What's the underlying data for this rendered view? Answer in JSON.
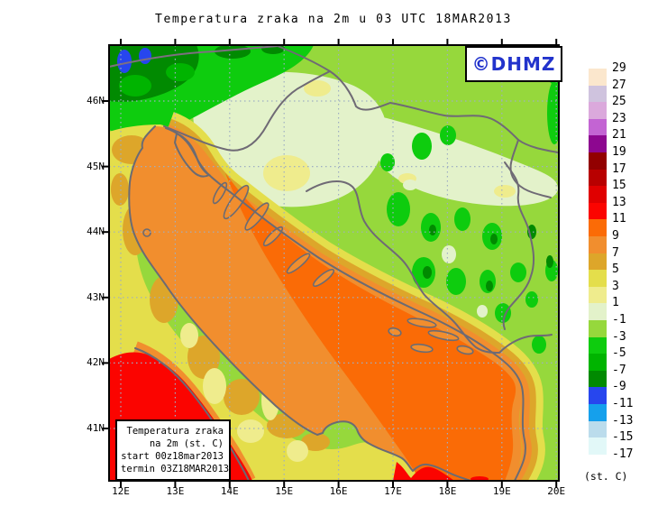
{
  "title": "Temperatura zraka na 2m u 03 UTC 18MAR2013",
  "watermark": {
    "text": "©DHMZ",
    "color": "#2233cc"
  },
  "axes": {
    "x_labels": [
      "12E",
      "13E",
      "14E",
      "15E",
      "16E",
      "17E",
      "18E",
      "19E",
      "20E"
    ],
    "y_labels": [
      "46N",
      "45N",
      "44N",
      "43N",
      "42N",
      "41N"
    ]
  },
  "legend": {
    "unit": "(st. C)",
    "levels": [
      "29",
      "27",
      "25",
      "23",
      "21",
      "19",
      "17",
      "15",
      "13",
      "11",
      "9",
      "7",
      "5",
      "3",
      "1",
      "-1",
      "-3",
      "-5",
      "-7",
      "-9",
      "-11",
      "-13",
      "-15",
      "-17"
    ],
    "colors": [
      "#fbe7cd",
      "#cfc3de",
      "#dba9dc",
      "#c364d3",
      "#8d0790",
      "#920000",
      "#b80000",
      "#e00000",
      "#fb0400",
      "#fb6b06",
      "#f18e2e",
      "#dda62a",
      "#e4de4b",
      "#efec8d",
      "#e3f2ca",
      "#96d83c",
      "#0ecc0e",
      "#00b400",
      "#018a01",
      "#2746ee",
      "#15a0ec",
      "#bbdcec",
      "#e2f8f8",
      "#ffffff"
    ]
  },
  "info_box": {
    "lines": [
      "Temperatura zraka",
      "na 2m (st. C)",
      "start 00z18mar2013",
      "termin 03Z18MAR2013"
    ]
  },
  "map_colors": {
    "grid": "#9fAec3",
    "frame": "#000000",
    "coast": "#6b6b73",
    "border": "#6f6a75"
  }
}
